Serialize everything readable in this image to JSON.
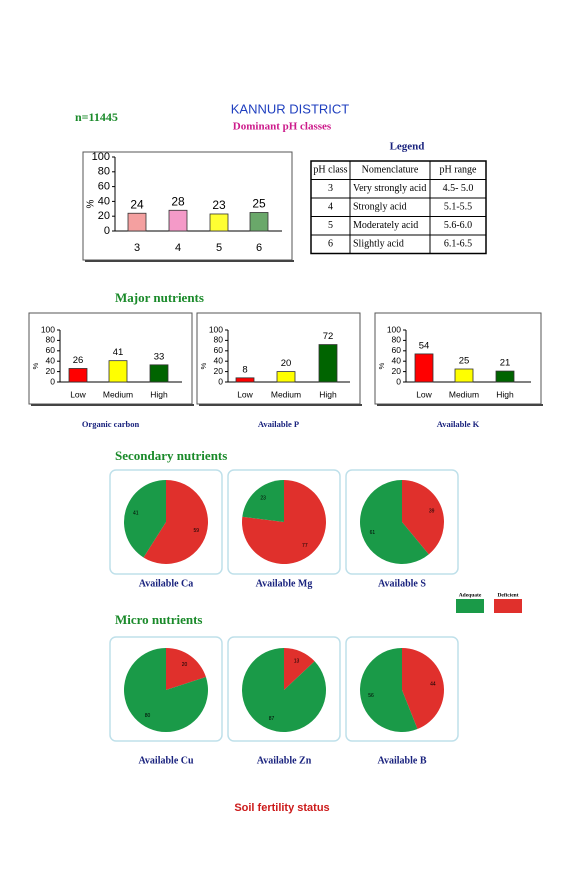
{
  "header": {
    "n": "n=11445",
    "title": "KANNUR DISTRICT",
    "subtitle": "Dominant pH classes"
  },
  "legend_table": {
    "title": "Legend",
    "columns": [
      "pH class",
      "Nomenclature",
      "pH range"
    ],
    "rows": [
      [
        "3",
        "Very strongly acid",
        "4.5- 5.0"
      ],
      [
        "4",
        "Strongly acid",
        "5.1-5.5"
      ],
      [
        "5",
        "Moderately acid",
        "5.6-6.0"
      ],
      [
        "6",
        "Slightly acid",
        "6.1-6.5"
      ]
    ]
  },
  "sections": {
    "major": "Major nutrients",
    "secondary": "Secondary nutrients",
    "micro": "Micro nutrients"
  },
  "pie_legend": {
    "labels": [
      "Adequate",
      "Deficient"
    ],
    "colors": [
      "#1a9a48",
      "#e0302c"
    ]
  },
  "footer": "Soil fertility status",
  "chart_data": [
    {
      "type": "bar",
      "categories": [
        "3",
        "4",
        "5",
        "6"
      ],
      "values": [
        24,
        28,
        23,
        25
      ],
      "colors": [
        "#f4a0a0",
        "#f49ac8",
        "#ffff33",
        "#6aa86a"
      ],
      "ylim": [
        0,
        100
      ],
      "yticks": [
        0,
        20,
        40,
        60,
        80,
        100
      ],
      "ylabel": "%"
    },
    {
      "type": "bar",
      "categories": [
        "Low",
        "Medium",
        "High"
      ],
      "values": [
        26,
        41,
        33
      ],
      "colors": [
        "#ff0000",
        "#ffff00",
        "#006400"
      ],
      "ylim": [
        0,
        100
      ],
      "yticks": [
        0,
        20,
        40,
        60,
        80,
        100
      ],
      "ylabel": "%",
      "caption": "Organic carbon"
    },
    {
      "type": "bar",
      "categories": [
        "Low",
        "Medium",
        "High"
      ],
      "values": [
        8,
        20,
        72
      ],
      "colors": [
        "#ff0000",
        "#ffff00",
        "#006400"
      ],
      "ylim": [
        0,
        100
      ],
      "yticks": [
        0,
        20,
        40,
        60,
        80,
        100
      ],
      "ylabel": "%",
      "caption": "Available  P"
    },
    {
      "type": "bar",
      "categories": [
        "Low",
        "Medium",
        "High"
      ],
      "values": [
        54,
        25,
        21
      ],
      "colors": [
        "#ff0000",
        "#ffff00",
        "#006400"
      ],
      "ylim": [
        0,
        100
      ],
      "yticks": [
        0,
        20,
        40,
        60,
        80,
        100
      ],
      "ylabel": "%",
      "caption": "Available  K"
    },
    {
      "type": "pie",
      "values": [
        41,
        59
      ],
      "caption": "Available  Ca"
    },
    {
      "type": "pie",
      "values": [
        23,
        77
      ],
      "caption": "Available  Mg"
    },
    {
      "type": "pie",
      "values": [
        61,
        39
      ],
      "caption": "Available  S"
    },
    {
      "type": "pie",
      "values": [
        80,
        20
      ],
      "caption": "Available Cu"
    },
    {
      "type": "pie",
      "values": [
        87,
        13
      ],
      "caption": "Available  Zn"
    },
    {
      "type": "pie",
      "values": [
        56,
        44
      ],
      "caption": "Available  B"
    }
  ]
}
